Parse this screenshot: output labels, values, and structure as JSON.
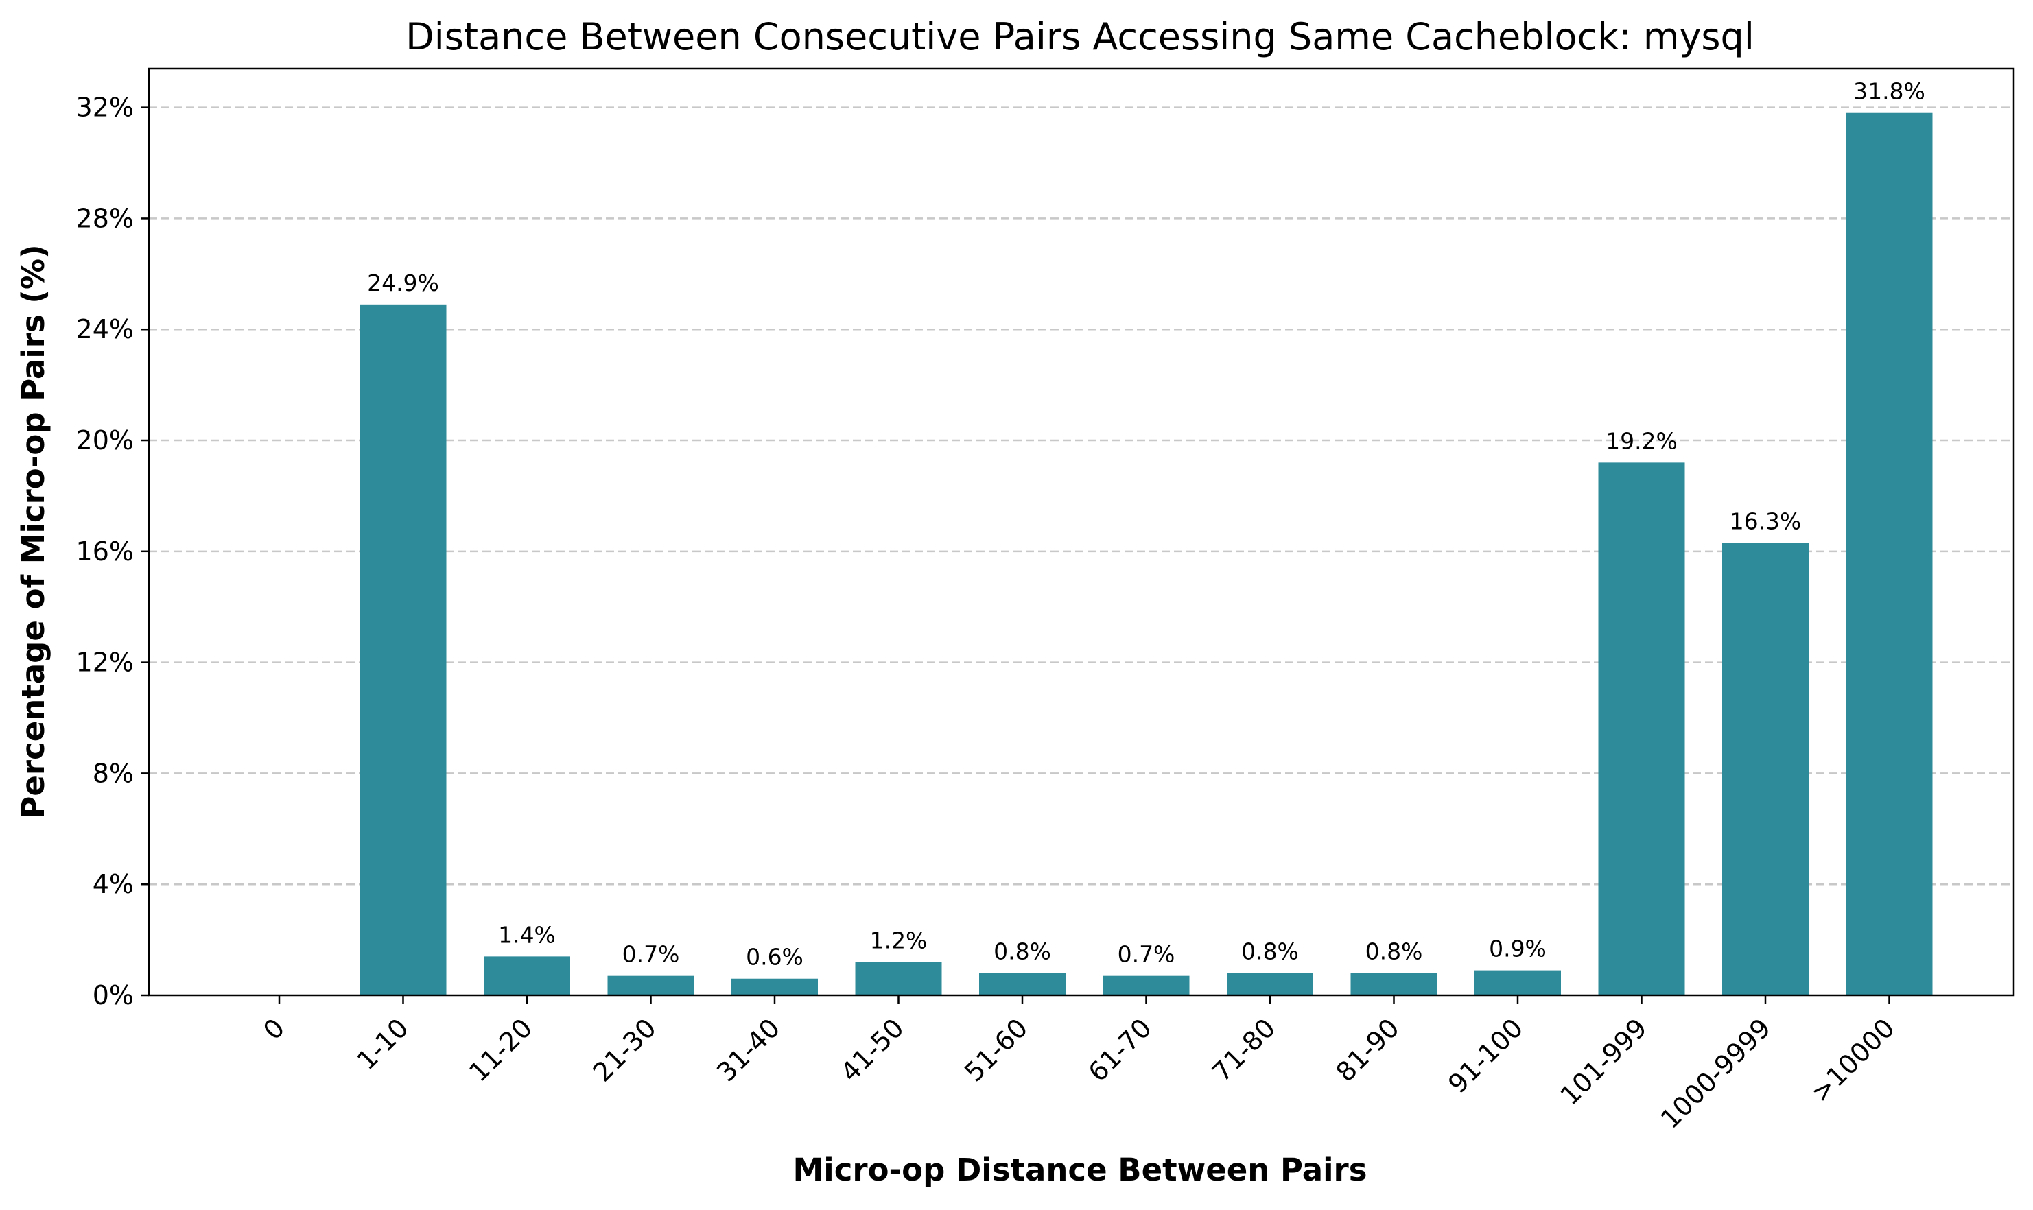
{
  "chart_data": {
    "type": "bar",
    "title": "Distance Between Consecutive Pairs Accessing Same Cacheblock: mysql",
    "xlabel": "Micro-op Distance Between Pairs",
    "ylabel": "Percentage of Micro-op Pairs (%)",
    "categories": [
      "0",
      "1-10",
      "11-20",
      "21-30",
      "31-40",
      "41-50",
      "51-60",
      "61-70",
      "71-80",
      "81-90",
      "91-100",
      "101-999",
      "1000-9999",
      ">10000"
    ],
    "values": [
      0.0,
      24.9,
      1.4,
      0.7,
      0.6,
      1.2,
      0.8,
      0.7,
      0.8,
      0.8,
      0.9,
      19.2,
      16.3,
      31.8
    ],
    "value_labels": [
      "",
      "24.9%",
      "1.4%",
      "0.7%",
      "0.6%",
      "1.2%",
      "0.8%",
      "0.7%",
      "0.8%",
      "0.8%",
      "0.9%",
      "19.2%",
      "16.3%",
      "31.8%"
    ],
    "yticks": [
      0,
      4,
      8,
      12,
      16,
      20,
      24,
      28,
      32
    ],
    "ytick_labels": [
      "0%",
      "4%",
      "8%",
      "12%",
      "16%",
      "20%",
      "24%",
      "28%",
      "32%"
    ],
    "ylim": [
      0,
      33.4
    ],
    "grid": "horizontal dashed",
    "bar_color": "#2e8b9a"
  }
}
